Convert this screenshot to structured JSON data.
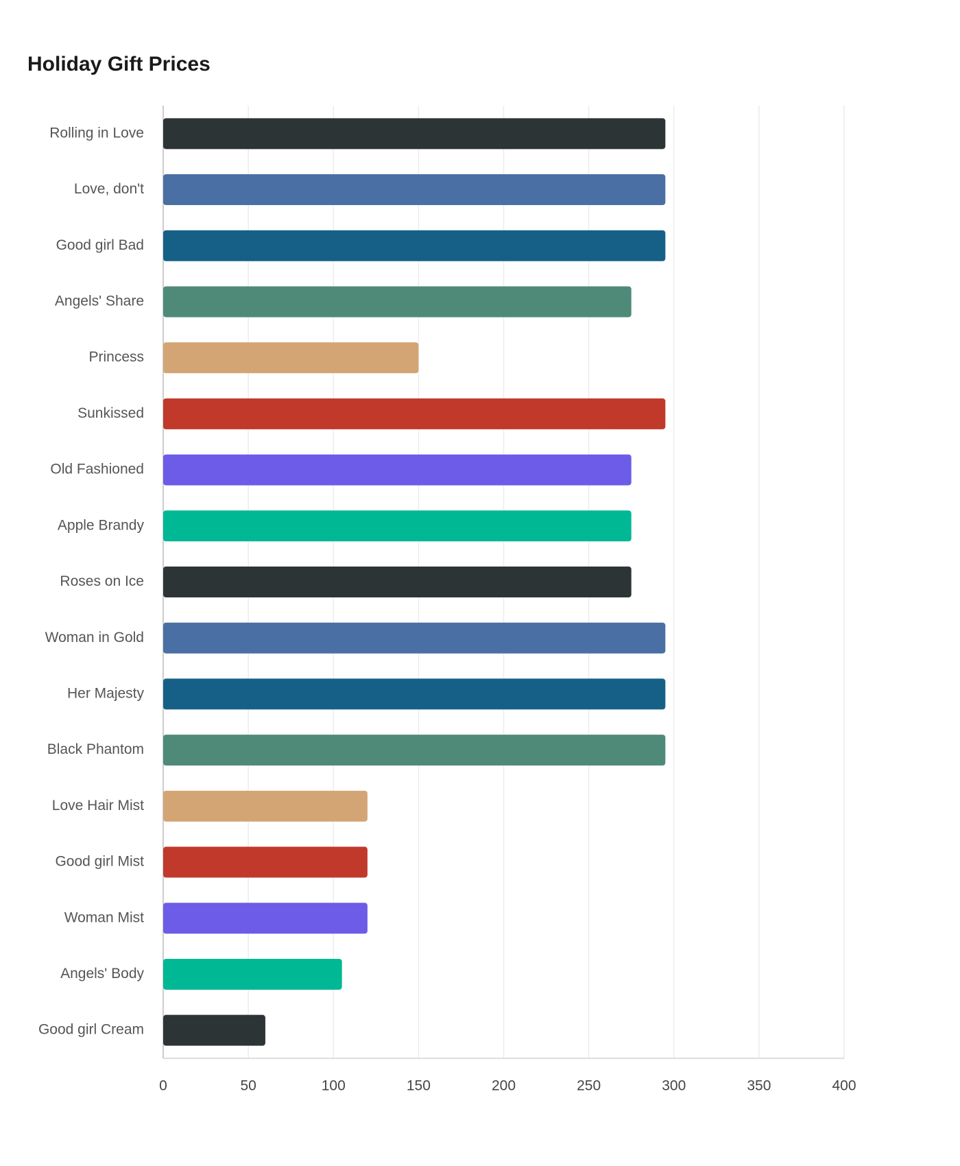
{
  "chart_data": {
    "type": "bar",
    "orientation": "horizontal",
    "title": "Holiday Gift Prices",
    "categories": [
      "Rolling in Love",
      "Love, don't",
      "Good girl Bad",
      "Angels' Share",
      "Princess",
      "Sunkissed",
      "Old Fashioned",
      "Apple Brandy",
      "Roses on Ice",
      "Woman in Gold",
      "Her Majesty",
      "Black Phantom",
      "Love Hair Mist",
      "Good girl Mist",
      "Woman Mist",
      "Angels' Body",
      "Good girl Cream"
    ],
    "values": [
      295,
      295,
      295,
      275,
      150,
      295,
      275,
      275,
      275,
      295,
      295,
      295,
      120,
      120,
      120,
      105,
      60
    ],
    "colors": [
      "#2d3436",
      "#4a6fa5",
      "#166088",
      "#4f8a78",
      "#d4a574",
      "#c0392b",
      "#6c5ce7",
      "#00b894",
      "#2d3436",
      "#4a6fa5",
      "#166088",
      "#4f8a78",
      "#d4a574",
      "#c0392b",
      "#6c5ce7",
      "#00b894",
      "#2d3436"
    ],
    "xlim": [
      0,
      400
    ],
    "xticks": [
      0,
      50,
      100,
      150,
      200,
      250,
      300,
      350,
      400
    ],
    "grid": true
  }
}
